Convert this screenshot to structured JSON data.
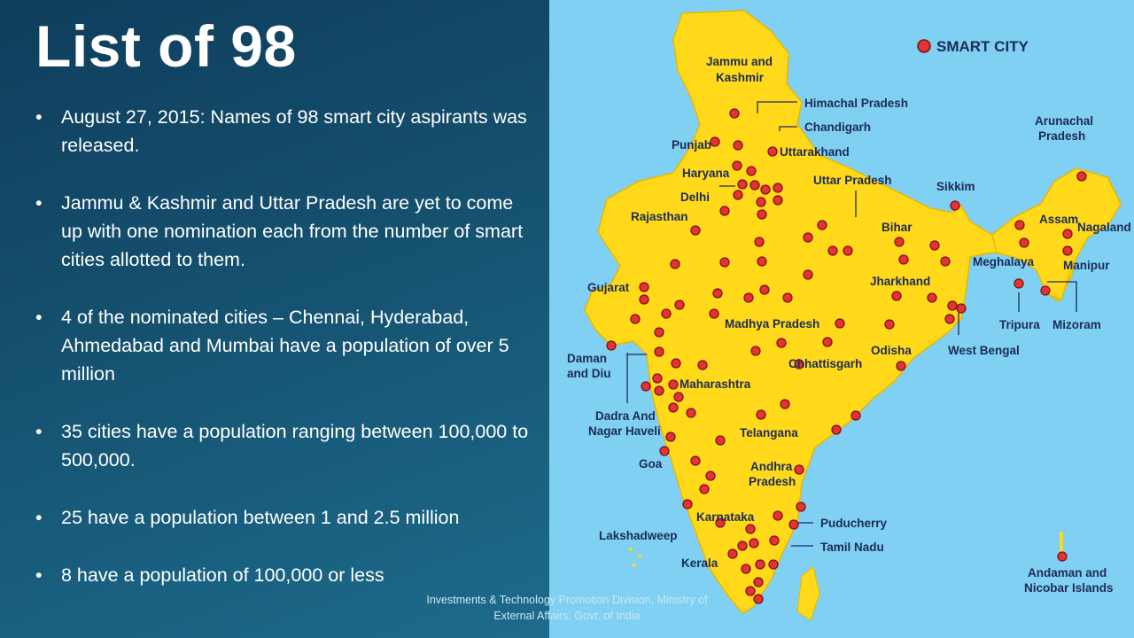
{
  "slide": {
    "title": "List of 98",
    "bullets": [
      "August 27, 2015: Names of 98 smart city aspirants was released.",
      "Jammu & Kashmir and Uttar Pradesh are yet to come up with one nomination each from the number of smart cities allotted to them.",
      "4 of the nominated cities – Chennai, Hyderabad, Ahmedabad and Mumbai have a population of over 5 million",
      "35 cities have a population ranging between 100,000 to 500,000.",
      "25 have a population between 1 and 2.5 million",
      "8 have a population of 100,000 or less"
    ],
    "bullet_glyph": "•",
    "footer_line1": "Investments & Technology Promotion Division, Ministry of",
    "footer_line2": "External Affairs, Govt. of India"
  },
  "map": {
    "legend_label": "SMART CITY",
    "labels": {
      "jk1": "Jammu and",
      "jk2": "Kashmir",
      "himachal": "Himachal Pradesh",
      "chandigarh": "Chandigarh",
      "punjab": "Punjab",
      "uttarakhand": "Uttarakhand",
      "haryana": "Haryana",
      "delhi": "Delhi",
      "uttar_pradesh": "Uttar Pradesh",
      "sikkim": "Sikkim",
      "arunachal1": "Arunachal",
      "arunachal2": "Pradesh",
      "rajasthan": "Rajasthan",
      "bihar": "Bihar",
      "assam": "Assam",
      "nagaland": "Nagaland",
      "meghalaya": "Meghalaya",
      "manipur": "Manipur",
      "gujarat": "Gujarat",
      "jharkhand": "Jharkhand",
      "madhya_pradesh": "Madhya Pradesh",
      "tripura": "Tripura",
      "mizoram": "Mizoram",
      "west_bengal": "West Bengal",
      "daman1": "Daman",
      "daman2": "and Diu",
      "odisha": "Odisha",
      "chhattisgarh": "Chhattisgarh",
      "maharashtra": "Maharashtra",
      "dadra1": "Dadra And",
      "dadra2": "Nagar Haveli",
      "telangana": "Telangana",
      "goa": "Goa",
      "andhra1": "Andhra",
      "andhra2": "Pradesh",
      "karnataka": "Karnataka",
      "puducherry": "Puducherry",
      "lakshadweep": "Lakshadweep",
      "tamil_nadu": "Tamil Nadu",
      "kerala": "Kerala",
      "andaman1": "Andaman and",
      "andaman2": "Nicobar Islands"
    },
    "colors": {
      "land": "#ffd91a",
      "sea": "#7fd0f2",
      "city": "#e53232",
      "city_stroke": "#7a1212",
      "label": "#1d2b55"
    }
  }
}
